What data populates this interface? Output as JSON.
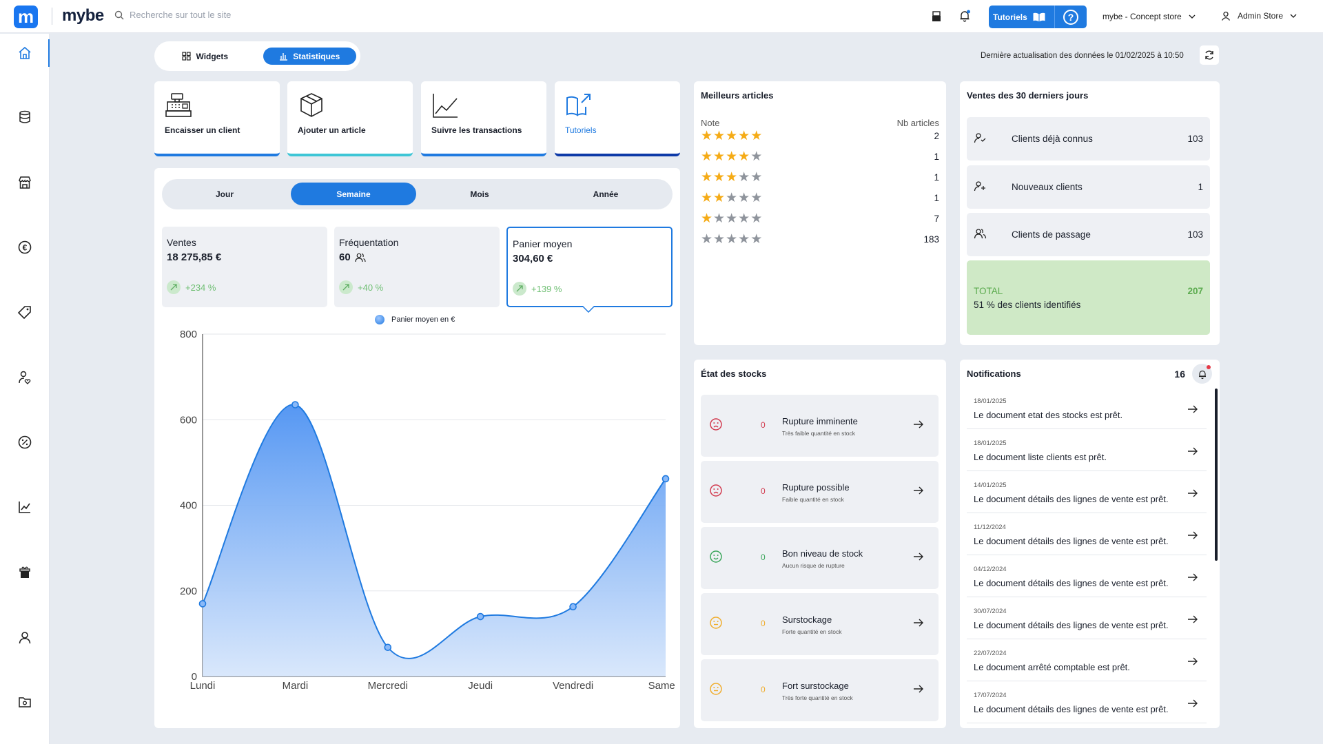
{
  "header": {
    "logo_letter": "m",
    "app_name": "mybe",
    "search_placeholder": "Recherche sur tout le site",
    "tutorials_label": "Tutoriels",
    "store_name": "mybe - Concept store",
    "user_name": "Admin Store"
  },
  "toolbar": {
    "widgets_label": "Widgets",
    "stats_label": "Statistiques",
    "last_update": "Dernière actualisation des données le 01/02/2025 à 10:50"
  },
  "quick_actions": [
    {
      "label": "Encaisser un client",
      "accent": "#1f7ae0"
    },
    {
      "label": "Ajouter un article",
      "accent": "#3ec6d6"
    },
    {
      "label": "Suivre les transactions",
      "accent": "#1f7ae0"
    },
    {
      "label": "Tutoriels",
      "accent": "#0e3aa8"
    }
  ],
  "periods": [
    "Jour",
    "Semaine",
    "Mois",
    "Année"
  ],
  "selected_period": "Semaine",
  "kpis": [
    {
      "title": "Ventes",
      "value": "18 275,85 €",
      "growth": "+234 %"
    },
    {
      "title": "Fréquentation",
      "value": "60",
      "growth": "+40 %"
    },
    {
      "title": "Panier moyen",
      "value": "304,60 €",
      "growth": "+139 %"
    }
  ],
  "chart_data": {
    "type": "area",
    "title": "",
    "legend": [
      "Panier moyen en €"
    ],
    "categories": [
      "Lundi",
      "Mardi",
      "Mercredi",
      "Jeudi",
      "Vendredi",
      "Samedi"
    ],
    "values": [
      170,
      635,
      68,
      140,
      163,
      462
    ],
    "ylim": [
      0,
      800
    ],
    "yticks": [
      "0",
      "200",
      "400",
      "600",
      "800"
    ],
    "color": "#1f7ae0"
  },
  "best_articles": {
    "title": "Meilleurs articles",
    "col_note": "Note",
    "col_count": "Nb articles",
    "rows": [
      {
        "stars": 5,
        "count": "2"
      },
      {
        "stars": 4,
        "count": "1"
      },
      {
        "stars": 3,
        "count": "1"
      },
      {
        "stars": 2,
        "count": "1"
      },
      {
        "stars": 1,
        "count": "7"
      },
      {
        "stars": 0,
        "count": "183"
      }
    ]
  },
  "sales30": {
    "title": "Ventes des 30 derniers jours",
    "rows": [
      {
        "label": "Clients déjà connus",
        "value": "103"
      },
      {
        "label": "Nouveaux clients",
        "value": "1"
      },
      {
        "label": "Clients de passage",
        "value": "103"
      }
    ],
    "total_label": "TOTAL",
    "total_value": "207",
    "total_sub": "51 % des clients identifiés"
  },
  "stocks": {
    "title": "État des stocks",
    "rows": [
      {
        "title": "Rupture imminente",
        "sub": "Très faible quantité en stock",
        "count": "0",
        "color": "#d23a4e"
      },
      {
        "title": "Rupture possible",
        "sub": "Faible quantité en stock",
        "count": "0",
        "color": "#d23a4e"
      },
      {
        "title": "Bon niveau de stock",
        "sub": "Aucun risque de rupture",
        "count": "0",
        "color": "#3aa65a"
      },
      {
        "title": "Surstockage",
        "sub": "Forte quantité en stock",
        "count": "0",
        "color": "#f0ad2c"
      },
      {
        "title": "Fort surstockage",
        "sub": "Très forte quantité en stock",
        "count": "0",
        "color": "#f0ad2c"
      }
    ]
  },
  "notifications": {
    "title": "Notifications",
    "count": "16",
    "items": [
      {
        "date": "18/01/2025",
        "message": "Le document etat des stocks est prêt."
      },
      {
        "date": "18/01/2025",
        "message": "Le document liste clients est prêt."
      },
      {
        "date": "14/01/2025",
        "message": "Le document détails des lignes de vente est prêt."
      },
      {
        "date": "11/12/2024",
        "message": "Le document détails des lignes de vente est prêt."
      },
      {
        "date": "04/12/2024",
        "message": "Le document détails des lignes de vente est prêt."
      },
      {
        "date": "30/07/2024",
        "message": "Le document détails des lignes de vente est prêt."
      },
      {
        "date": "22/07/2024",
        "message": "Le document arrêté comptable est prêt."
      },
      {
        "date": "17/07/2024",
        "message": "Le document détails des lignes de vente est prêt."
      }
    ]
  }
}
